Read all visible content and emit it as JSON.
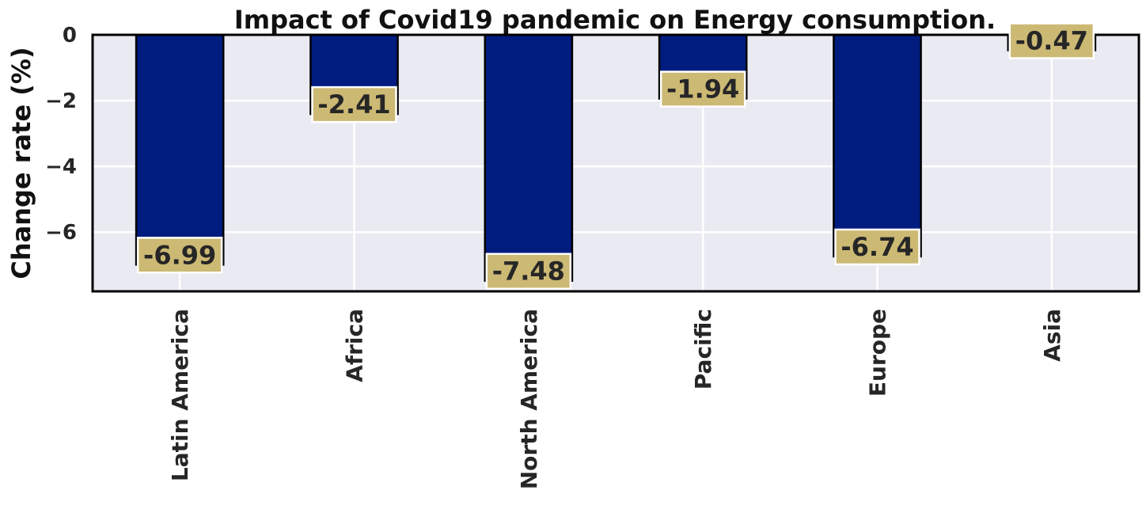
{
  "chart_data": {
    "type": "bar",
    "title": "Impact of Covid19 pandemic on Energy consumption.",
    "xlabel": "",
    "ylabel": "Change rate (%)",
    "categories": [
      "Latin America",
      "Africa",
      "North America",
      "Pacific",
      "Europe",
      "Asia"
    ],
    "values": [
      -6.99,
      -2.41,
      -7.48,
      -1.94,
      -6.74,
      -0.47
    ],
    "data_labels": [
      "-6.99",
      "-2.41",
      "-7.48",
      "-1.94",
      "-6.74",
      "-0.47"
    ],
    "yticks": [
      0,
      -2,
      -4,
      -6
    ],
    "ytick_labels": [
      "0",
      "−2",
      "−4",
      "−6"
    ],
    "ylim": [
      -7.8,
      0
    ],
    "grid": true,
    "legend": "none",
    "colors": {
      "bar": "#001c7f",
      "bar_edge": "#000000",
      "label_box": "#ccb974",
      "plot_background": "#eaeaf2",
      "grid": "#ffffff",
      "frame": "#000000"
    }
  }
}
